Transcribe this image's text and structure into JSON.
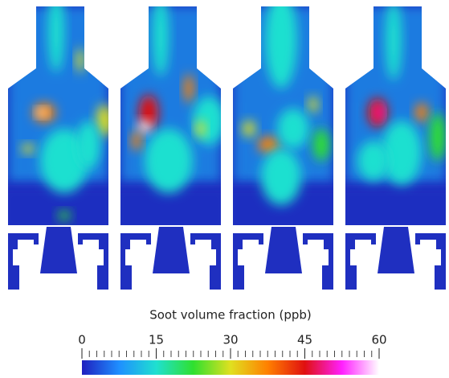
{
  "chart_data": {
    "type": "colorbar",
    "title": "Soot volume fraction (ppb)",
    "clim": [
      0,
      60
    ],
    "cticks": [
      0,
      15,
      30,
      45,
      60
    ],
    "colors": [
      "#1f1fbf",
      "#1f8fff",
      "#1fe0d0",
      "#2fe02f",
      "#e0e020",
      "#ff8000",
      "#e01010",
      "#ff20ff",
      "#ffffff"
    ]
  }
}
